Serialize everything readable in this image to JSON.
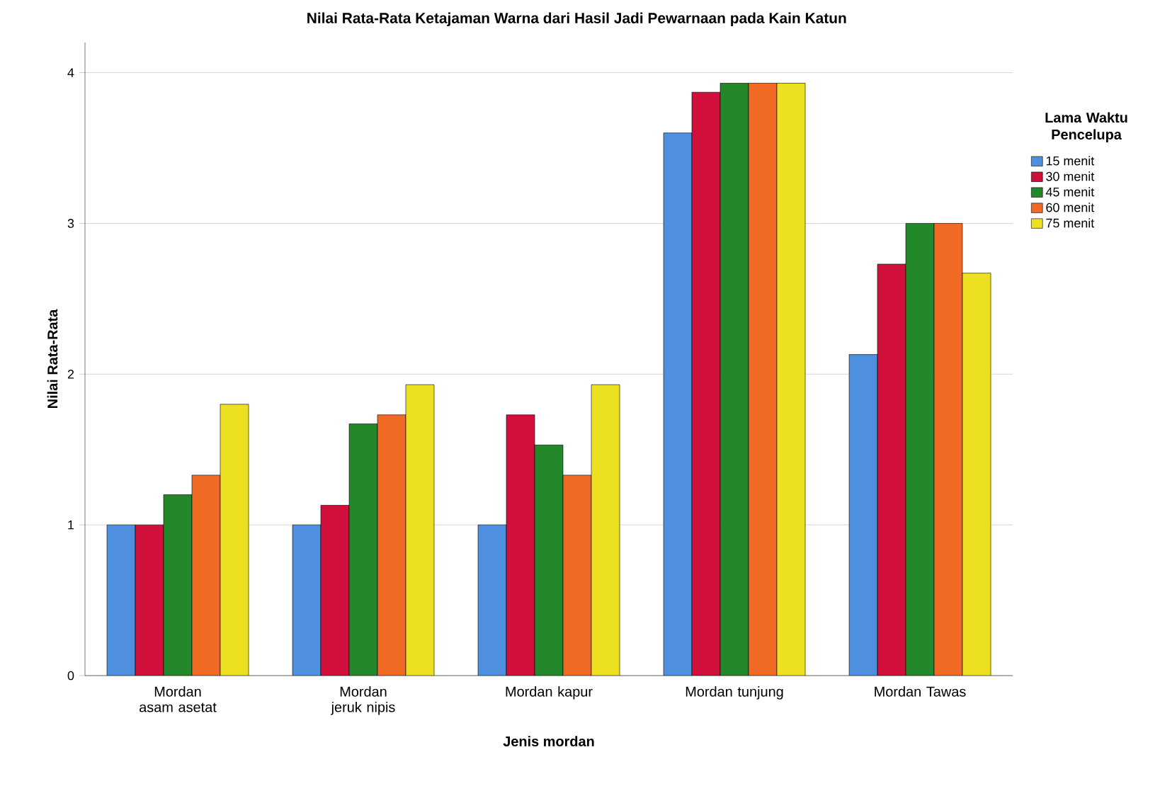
{
  "chart_data": {
    "type": "bar",
    "title": "Nilai Rata-Rata Ketajaman Warna dari Hasil Jadi Pewarnaan pada Kain Katun",
    "xlabel": "Jenis mordan",
    "ylabel": "Nilai Rata-Rata",
    "legend_title": "Lama Waktu Pencelupa",
    "categories": [
      "Mordan asam asetat",
      "Mordan jeruk nipis",
      "Mordan kapur",
      "Mordan tunjung",
      "Mordan Tawas"
    ],
    "series": [
      {
        "name": "15 menit",
        "color": "#4f8fe0",
        "values": [
          1.0,
          1.0,
          1.0,
          3.6,
          2.13
        ]
      },
      {
        "name": "30 menit",
        "color": "#d0103a",
        "values": [
          1.0,
          1.13,
          1.73,
          3.87,
          2.73
        ]
      },
      {
        "name": "45 menit",
        "color": "#23882a",
        "values": [
          1.2,
          1.67,
          1.53,
          3.93,
          3.0
        ]
      },
      {
        "name": "60 menit",
        "color": "#f06a23",
        "values": [
          1.33,
          1.73,
          1.33,
          3.93,
          3.0
        ]
      },
      {
        "name": "75 menit",
        "color": "#ece020",
        "values": [
          1.8,
          1.93,
          1.93,
          3.93,
          2.67
        ]
      }
    ],
    "ylim": [
      0,
      4.2
    ],
    "yticks": [
      0,
      1,
      2,
      3,
      4
    ],
    "grid": "y",
    "legend": "right"
  }
}
